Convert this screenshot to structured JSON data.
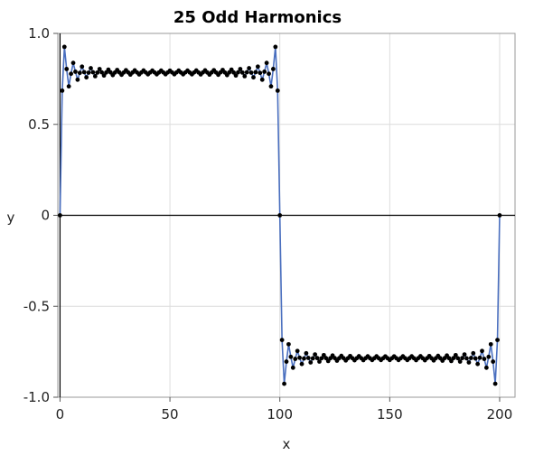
{
  "chart_data": {
    "type": "line",
    "title": "25 Odd Harmonics",
    "xlabel": "x",
    "ylabel": "y",
    "xlim": [
      -1,
      207
    ],
    "ylim": [
      -1.0,
      1.0
    ],
    "x_ticks": [
      0,
      50,
      100,
      150,
      200
    ],
    "x_tick_labels": [
      "0",
      "50",
      "100",
      "150",
      "200"
    ],
    "y_ticks": [
      1.0,
      0.5,
      0,
      -0.5,
      -1.0
    ],
    "y_tick_labels": [
      "1.0",
      "0.5",
      "0",
      "-0.5",
      "-1.0"
    ],
    "grid": true,
    "series": [
      {
        "x_start": 0,
        "x_end": 200,
        "x_step": 1,
        "harmonics": 25,
        "period": 200,
        "amplitude_scale": 1.0,
        "line_color": "#4a6fbf",
        "marker_color": "#000000"
      }
    ],
    "reference_lines": {
      "y": 0,
      "x": 0
    }
  }
}
